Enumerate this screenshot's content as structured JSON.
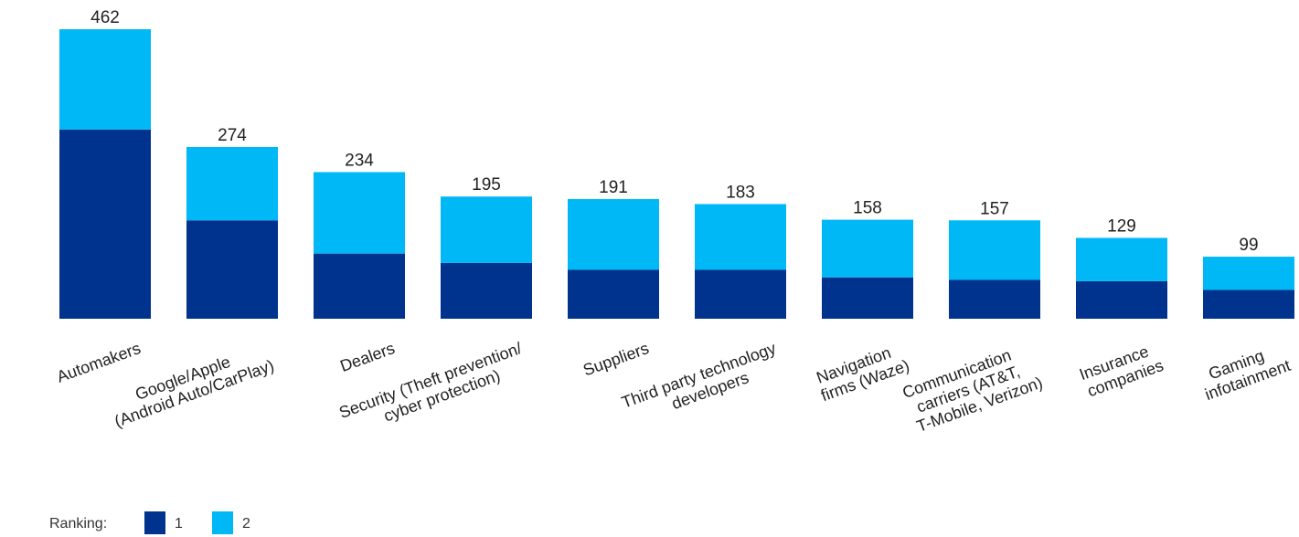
{
  "chart_data": {
    "type": "bar",
    "stacked": true,
    "categories": [
      [
        "Automakers"
      ],
      [
        "Google/Apple",
        "(Android Auto/CarPlay)"
      ],
      [
        "Dealers"
      ],
      [
        "Security (Theft prevention/",
        "cyber protection)"
      ],
      [
        "Suppliers"
      ],
      [
        "Third party technology",
        "developers"
      ],
      [
        "Navigation",
        "firms (Waze)"
      ],
      [
        "Communication",
        "carriers (AT&T,",
        "T-Mobile, Verizon)"
      ],
      [
        "Insurance",
        "companies"
      ],
      [
        "Gaming",
        "infotainment"
      ]
    ],
    "series": [
      {
        "name": "1",
        "color": "#00338d",
        "values": [
          302,
          157,
          104,
          89,
          78,
          78,
          66,
          62,
          60,
          46
        ]
      },
      {
        "name": "2",
        "color": "#00b8f5",
        "values": [
          160,
          117,
          130,
          106,
          113,
          105,
          92,
          95,
          69,
          53
        ]
      }
    ],
    "totals": [
      "462",
      "274",
      "234",
      "195",
      "191",
      "183",
      "158",
      "157",
      "129",
      "99"
    ],
    "ylim": [
      0,
      462
    ],
    "grid": false,
    "legend": {
      "title": "Ranking:",
      "placement": "bottom-left"
    }
  }
}
